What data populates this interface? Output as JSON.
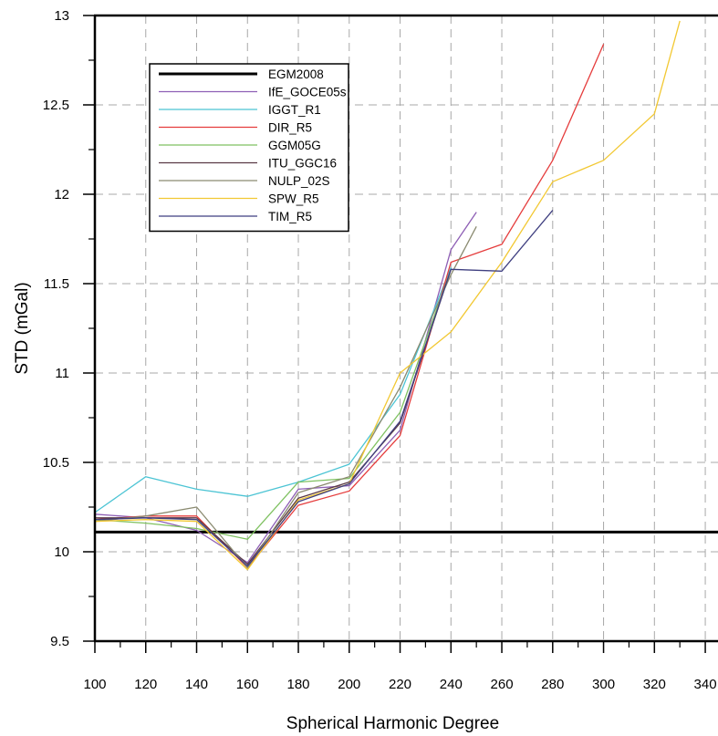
{
  "chart_data": {
    "type": "line",
    "xlabel": "Spherical Harmonic Degree",
    "ylabel": "STD (mGal)",
    "xlim": [
      100,
      345
    ],
    "ylim": [
      9.5,
      13
    ],
    "xticks": [
      100,
      120,
      140,
      160,
      180,
      200,
      220,
      240,
      260,
      280,
      300,
      320,
      340
    ],
    "yticks": [
      9.5,
      10,
      10.5,
      11,
      11.5,
      12,
      12.5,
      13
    ],
    "grid": true,
    "legend_position": "top-left",
    "series": [
      {
        "name": "EGM2008",
        "color": "#000000",
        "x": [
          100,
          345
        ],
        "y": [
          10.11,
          10.11
        ]
      },
      {
        "name": "IfE_GOCE05s",
        "color": "#8e5fb5",
        "x": [
          100,
          120,
          140,
          160,
          180,
          200,
          220,
          240,
          250
        ],
        "y": [
          10.21,
          10.19,
          10.12,
          9.94,
          10.35,
          10.37,
          10.68,
          11.69,
          11.9
        ]
      },
      {
        "name": "IGGT_R1",
        "color": "#4cc4d4",
        "x": [
          100,
          120,
          140,
          160,
          180,
          200,
          220,
          240
        ],
        "y": [
          10.22,
          10.42,
          10.35,
          10.31,
          10.39,
          10.49,
          10.88,
          11.59
        ]
      },
      {
        "name": "DIR_R5",
        "color": "#e53c3c",
        "x": [
          100,
          120,
          140,
          160,
          180,
          200,
          220,
          240,
          260,
          280,
          300
        ],
        "y": [
          10.18,
          10.2,
          10.2,
          9.91,
          10.26,
          10.34,
          10.65,
          11.62,
          11.72,
          12.19,
          12.84
        ]
      },
      {
        "name": "GGM05G",
        "color": "#7fc161",
        "x": [
          100,
          120,
          140,
          160,
          180,
          200,
          220,
          240
        ],
        "y": [
          10.18,
          10.16,
          10.13,
          10.07,
          10.39,
          10.41,
          10.78,
          11.58
        ]
      },
      {
        "name": "ITU_GGC16",
        "color": "#5a3a45",
        "x": [
          100,
          120,
          140,
          160,
          180,
          200,
          220,
          240
        ],
        "y": [
          10.19,
          10.19,
          10.19,
          9.93,
          10.3,
          10.39,
          10.72,
          11.58
        ]
      },
      {
        "name": "NULP_02S",
        "color": "#8a8a70",
        "x": [
          100,
          120,
          140,
          160,
          180,
          200,
          220,
          240,
          250
        ],
        "y": [
          10.17,
          10.2,
          10.25,
          9.91,
          10.33,
          10.42,
          10.92,
          11.55,
          11.82
        ]
      },
      {
        "name": "SPW_R5",
        "color": "#f2c832",
        "x": [
          100,
          120,
          140,
          160,
          180,
          200,
          220,
          240,
          260,
          280,
          300,
          320,
          330
        ],
        "y": [
          10.17,
          10.18,
          10.17,
          9.9,
          10.29,
          10.38,
          11.0,
          11.23,
          11.62,
          12.07,
          12.19,
          12.45,
          12.97
        ]
      },
      {
        "name": "TIM_R5",
        "color": "#3f3f80",
        "x": [
          100,
          120,
          140,
          160,
          180,
          200,
          220,
          240,
          260,
          280
        ],
        "y": [
          10.18,
          10.19,
          10.18,
          9.92,
          10.28,
          10.38,
          10.73,
          11.58,
          11.57,
          11.91
        ]
      }
    ]
  }
}
